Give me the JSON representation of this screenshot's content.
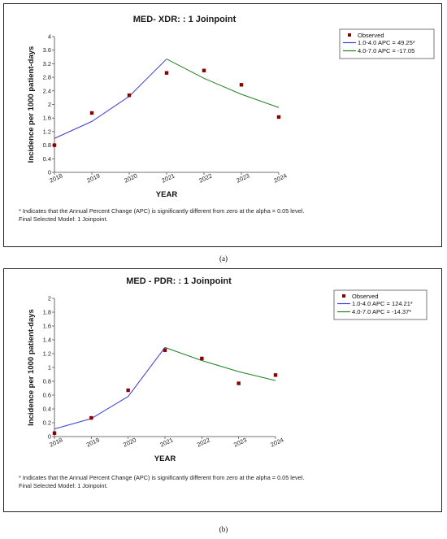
{
  "figure": {
    "caption_a": "(a)",
    "caption_b": "(b)"
  },
  "chart_data": [
    {
      "type": "line",
      "title": "MED- XDR: : 1 Joinpoint",
      "xlabel": "YEAR",
      "ylabel": "Incidence per 1000 patient-days",
      "x_ticks": [
        "2018",
        "2019",
        "2020",
        "2021",
        "2022",
        "2023",
        "2024"
      ],
      "xlim": [
        2018,
        2024
      ],
      "ylim": [
        0,
        4
      ],
      "y_ticks": [
        "0",
        "0.4",
        "0.8",
        "1.2",
        "1.6",
        "2",
        "2.4",
        "2.8",
        "3.2",
        "3.6",
        "4"
      ],
      "y_tick_values": [
        0,
        0.4,
        0.8,
        1.2,
        1.6,
        2,
        2.4,
        2.8,
        3.2,
        3.6,
        4
      ],
      "observed": {
        "name": "Observed",
        "x": [
          2018,
          2019,
          2020,
          2021,
          2022,
          2023,
          2024
        ],
        "y": [
          0.8,
          1.75,
          2.27,
          2.93,
          3.0,
          2.58,
          1.63
        ],
        "color": "#8b0000"
      },
      "series": [
        {
          "name": "1.0-4.0 APC  =  49.25*",
          "x": [
            2018,
            2019,
            2020,
            2021
          ],
          "y": [
            1.0,
            1.5,
            2.24,
            3.34
          ],
          "color": "#3b3bd6"
        },
        {
          "name": "4.0-7.0 APC  =  -17.05",
          "x": [
            2021,
            2022,
            2023,
            2024
          ],
          "y": [
            3.34,
            2.77,
            2.3,
            1.91
          ],
          "color": "#1f7f1f"
        }
      ],
      "notes": [
        "* Indicates that the Annual Percent Change (APC) is significantly different from zero at the alpha = 0.05 level.",
        "Final Selected Model: 1 Joinpoint."
      ],
      "legend_position": "top-right",
      "grid": false
    },
    {
      "type": "line",
      "title": "MED - PDR: : 1 Joinpoint",
      "xlabel": "YEAR",
      "ylabel": "Incidence per 1000 patient-days",
      "x_ticks": [
        "2018",
        "2019",
        "2020",
        "2021",
        "2022",
        "2023",
        "2024"
      ],
      "xlim": [
        2018,
        2024
      ],
      "ylim": [
        0,
        2
      ],
      "y_ticks": [
        "0",
        "0.2",
        "0.4",
        "0.6",
        "0.8",
        "1",
        "1.2",
        "1.4",
        "1.6",
        "1.8",
        "2"
      ],
      "y_tick_values": [
        0,
        0.2,
        0.4,
        0.6,
        0.8,
        1,
        1.2,
        1.4,
        1.6,
        1.8,
        2
      ],
      "observed": {
        "name": "Observed",
        "x": [
          2018,
          2019,
          2020,
          2021,
          2022,
          2023,
          2024
        ],
        "y": [
          0.05,
          0.27,
          0.67,
          1.25,
          1.13,
          0.77,
          0.89
        ],
        "color": "#8b0000"
      },
      "series": [
        {
          "name": "1.0-4.0 APC  =  124.21*",
          "x": [
            2018,
            2019,
            2020,
            2021
          ],
          "y": [
            0.11,
            0.26,
            0.58,
            1.29
          ],
          "color": "#3b3bd6"
        },
        {
          "name": "4.0-7.0 APC  =  -14.37*",
          "x": [
            2021,
            2022,
            2023,
            2024
          ],
          "y": [
            1.29,
            1.1,
            0.94,
            0.81
          ],
          "color": "#1f7f1f"
        }
      ],
      "notes": [
        "* Indicates that the Annual Percent Change (APC) is significantly different from zero at the alpha = 0.05 level.",
        "Final Selected Model: 1 Joinpoint."
      ],
      "legend_position": "top-right",
      "grid": false
    }
  ]
}
